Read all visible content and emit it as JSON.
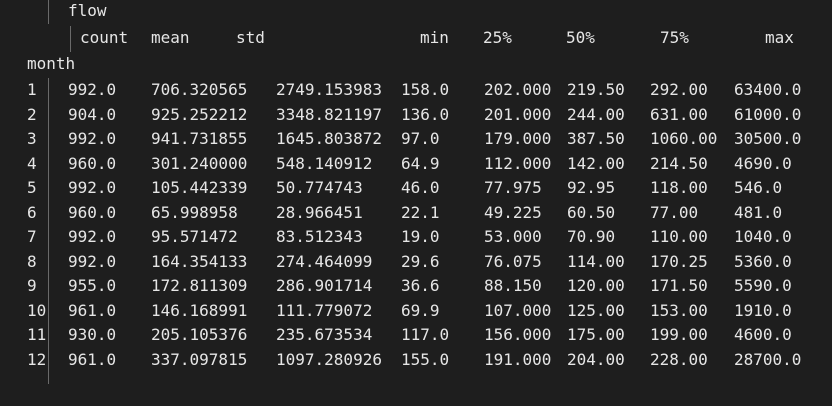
{
  "table": {
    "top_header": "flow",
    "columns": [
      "count",
      "mean",
      "std",
      "min",
      "25%",
      "50%",
      "75%",
      "max"
    ],
    "index_name": "month",
    "rows": [
      {
        "month": "1",
        "values": [
          "992.0",
          "706.320565",
          "2749.153983",
          "158.0",
          "202.000",
          "219.50",
          "292.00",
          "63400.0"
        ]
      },
      {
        "month": "2",
        "values": [
          "904.0",
          "925.252212",
          "3348.821197",
          "136.0",
          "201.000",
          "244.00",
          "631.00",
          "61000.0"
        ]
      },
      {
        "month": "3",
        "values": [
          "992.0",
          "941.731855",
          "1645.803872",
          "97.0",
          "179.000",
          "387.50",
          "1060.00",
          "30500.0"
        ]
      },
      {
        "month": "4",
        "values": [
          "960.0",
          "301.240000",
          "548.140912",
          "64.9",
          "112.000",
          "142.00",
          "214.50",
          "4690.0"
        ]
      },
      {
        "month": "5",
        "values": [
          "992.0",
          "105.442339",
          "50.774743",
          "46.0",
          "77.975",
          "92.95",
          "118.00",
          "546.0"
        ]
      },
      {
        "month": "6",
        "values": [
          "960.0",
          "65.998958",
          "28.966451",
          "22.1",
          "49.225",
          "60.50",
          "77.00",
          "481.0"
        ]
      },
      {
        "month": "7",
        "values": [
          "992.0",
          "95.571472",
          "83.512343",
          "19.0",
          "53.000",
          "70.90",
          "110.00",
          "1040.0"
        ]
      },
      {
        "month": "8",
        "values": [
          "992.0",
          "164.354133",
          "274.464099",
          "29.6",
          "76.075",
          "114.00",
          "170.25",
          "5360.0"
        ]
      },
      {
        "month": "9",
        "values": [
          "955.0",
          "172.811309",
          "286.901714",
          "36.6",
          "88.150",
          "120.00",
          "171.50",
          "5590.0"
        ]
      },
      {
        "month": "10",
        "values": [
          "961.0",
          "146.168991",
          "111.779072",
          "69.9",
          "107.000",
          "125.00",
          "153.00",
          "1910.0"
        ]
      },
      {
        "month": "11",
        "values": [
          "930.0",
          "205.105376",
          "235.673534",
          "117.0",
          "156.000",
          "175.00",
          "199.00",
          "4600.0"
        ]
      },
      {
        "month": "12",
        "values": [
          "961.0",
          "337.097815",
          "1097.280926",
          "155.0",
          "191.000",
          "204.00",
          "228.00",
          "28700.0"
        ]
      }
    ]
  }
}
